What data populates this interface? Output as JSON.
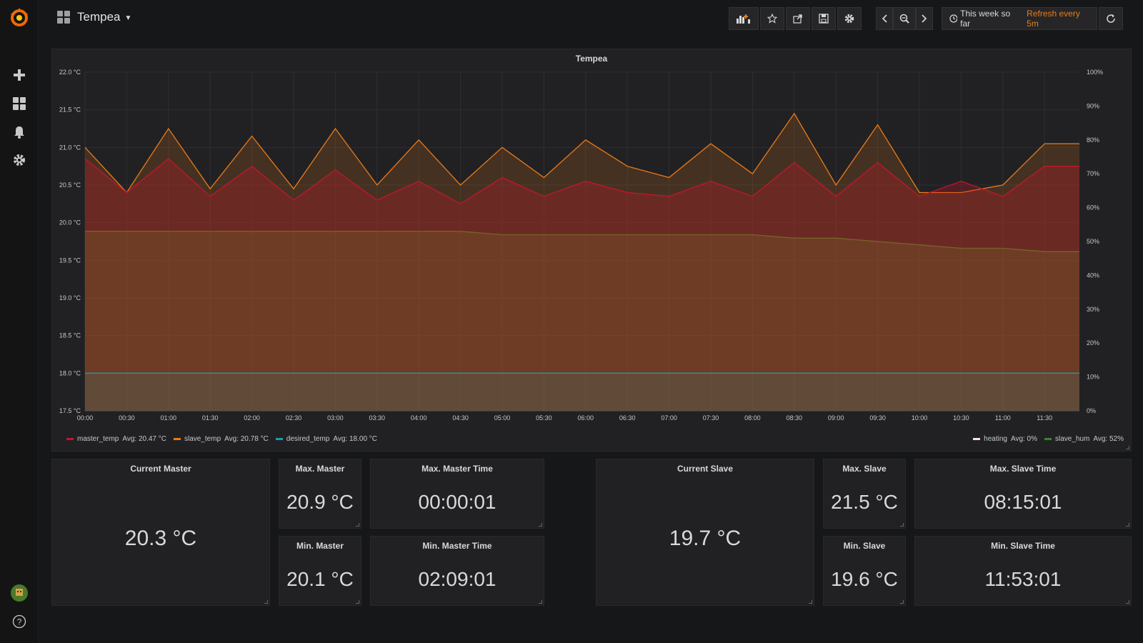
{
  "dashboard": {
    "title": "Tempea"
  },
  "toolbar": {
    "add_panel": "add-panel-icon",
    "star": "star-icon",
    "share": "share-icon",
    "save": "save-icon",
    "settings": "gear-icon",
    "back": "chevron-left-icon",
    "zoom": "zoom-out-icon",
    "forward": "chevron-right-icon",
    "time_range": "This week so far",
    "refresh_label": "Refresh every 5m",
    "refresh_button": "refresh-icon"
  },
  "graph": {
    "title": "Tempea",
    "legend_left": [
      {
        "name": "master_temp",
        "avg": "Avg: 20.47 °C",
        "color": "#c4162a"
      },
      {
        "name": "slave_temp",
        "avg": "Avg: 20.78 °C",
        "color": "#eb7b18"
      },
      {
        "name": "desired_temp",
        "avg": "Avg: 18.00 °C",
        "color": "#1f9ba8"
      }
    ],
    "legend_right": [
      {
        "name": "heating",
        "avg": "Avg: 0%",
        "color": "#fce2de"
      },
      {
        "name": "slave_hum",
        "avg": "Avg: 52%",
        "color": "#37872d"
      }
    ]
  },
  "chart_data": {
    "type": "line",
    "title": "Tempea",
    "x": [
      "00:00",
      "00:30",
      "01:00",
      "01:30",
      "02:00",
      "02:30",
      "03:00",
      "03:30",
      "04:00",
      "04:30",
      "05:00",
      "05:30",
      "06:00",
      "06:30",
      "07:00",
      "07:30",
      "08:00",
      "08:30",
      "09:00",
      "09:30",
      "10:00",
      "10:30",
      "11:00",
      "11:30"
    ],
    "y_left_ticks": [
      "17.5 °C",
      "18.0 °C",
      "18.5 °C",
      "19.0 °C",
      "19.5 °C",
      "20.0 °C",
      "20.5 °C",
      "21.0 °C",
      "21.5 °C",
      "22.0 °C"
    ],
    "y_right_ticks": [
      "0%",
      "10%",
      "20%",
      "30%",
      "40%",
      "50%",
      "60%",
      "70%",
      "80%",
      "90%",
      "100%"
    ],
    "ylim_left": [
      17.5,
      22.0
    ],
    "ylim_right": [
      0,
      100
    ],
    "series": [
      {
        "name": "master_temp",
        "axis": "left",
        "color": "#c4162a",
        "values": [
          20.85,
          20.4,
          20.85,
          20.35,
          20.75,
          20.3,
          20.7,
          20.3,
          20.55,
          20.25,
          20.6,
          20.35,
          20.55,
          20.4,
          20.35,
          20.55,
          20.35,
          20.8,
          20.35,
          20.8,
          20.35,
          20.55,
          20.35,
          20.75
        ]
      },
      {
        "name": "slave_temp",
        "axis": "left",
        "color": "#eb7b18",
        "values": [
          21.0,
          20.4,
          21.25,
          20.45,
          21.15,
          20.45,
          21.25,
          20.5,
          21.1,
          20.5,
          21.0,
          20.6,
          21.1,
          20.75,
          20.6,
          21.05,
          20.65,
          21.45,
          20.5,
          21.3,
          20.4,
          20.4,
          20.5,
          21.05
        ]
      },
      {
        "name": "desired_temp",
        "axis": "left",
        "color": "#1f9ba8",
        "values": [
          18.0,
          18.0,
          18.0,
          18.0,
          18.0,
          18.0,
          18.0,
          18.0,
          18.0,
          18.0,
          18.0,
          18.0,
          18.0,
          18.0,
          18.0,
          18.0,
          18.0,
          18.0,
          18.0,
          18.0,
          18.0,
          18.0,
          18.0,
          18.0
        ]
      },
      {
        "name": "slave_hum",
        "axis": "right",
        "color": "#37872d",
        "values": [
          53,
          53,
          53,
          53,
          53,
          53,
          53,
          53,
          53,
          53,
          52,
          52,
          52,
          52,
          52,
          52,
          52,
          51,
          51,
          50,
          49,
          48,
          48,
          47
        ]
      },
      {
        "name": "heating",
        "axis": "right",
        "color": "#fce2de",
        "values": [
          0,
          0,
          0,
          0,
          0,
          0,
          0,
          0,
          0,
          0,
          0,
          0,
          0,
          0,
          0,
          0,
          0,
          0,
          0,
          0,
          0,
          0,
          0,
          0
        ]
      }
    ],
    "grid": true,
    "legend": "bottom"
  },
  "stats": {
    "current_master": {
      "title": "Current Master",
      "value": "20.3 °C"
    },
    "max_master": {
      "title": "Max. Master",
      "value": "20.9 °C"
    },
    "max_master_time": {
      "title": "Max. Master Time",
      "value": "00:00:01"
    },
    "min_master": {
      "title": "Min. Master",
      "value": "20.1 °C"
    },
    "min_master_time": {
      "title": "Min. Master Time",
      "value": "02:09:01"
    },
    "current_slave": {
      "title": "Current Slave",
      "value": "19.7 °C"
    },
    "max_slave": {
      "title": "Max. Slave",
      "value": "21.5 °C"
    },
    "max_slave_time": {
      "title": "Max. Slave Time",
      "value": "08:15:01"
    },
    "min_slave": {
      "title": "Min. Slave",
      "value": "19.6 °C"
    },
    "min_slave_time": {
      "title": "Min. Slave Time",
      "value": "11:53:01"
    }
  },
  "sidebar": {
    "items": [
      "plus-icon",
      "dashboards-icon",
      "bell-icon",
      "gear-icon"
    ],
    "avatar": "avatar",
    "help": "?"
  }
}
